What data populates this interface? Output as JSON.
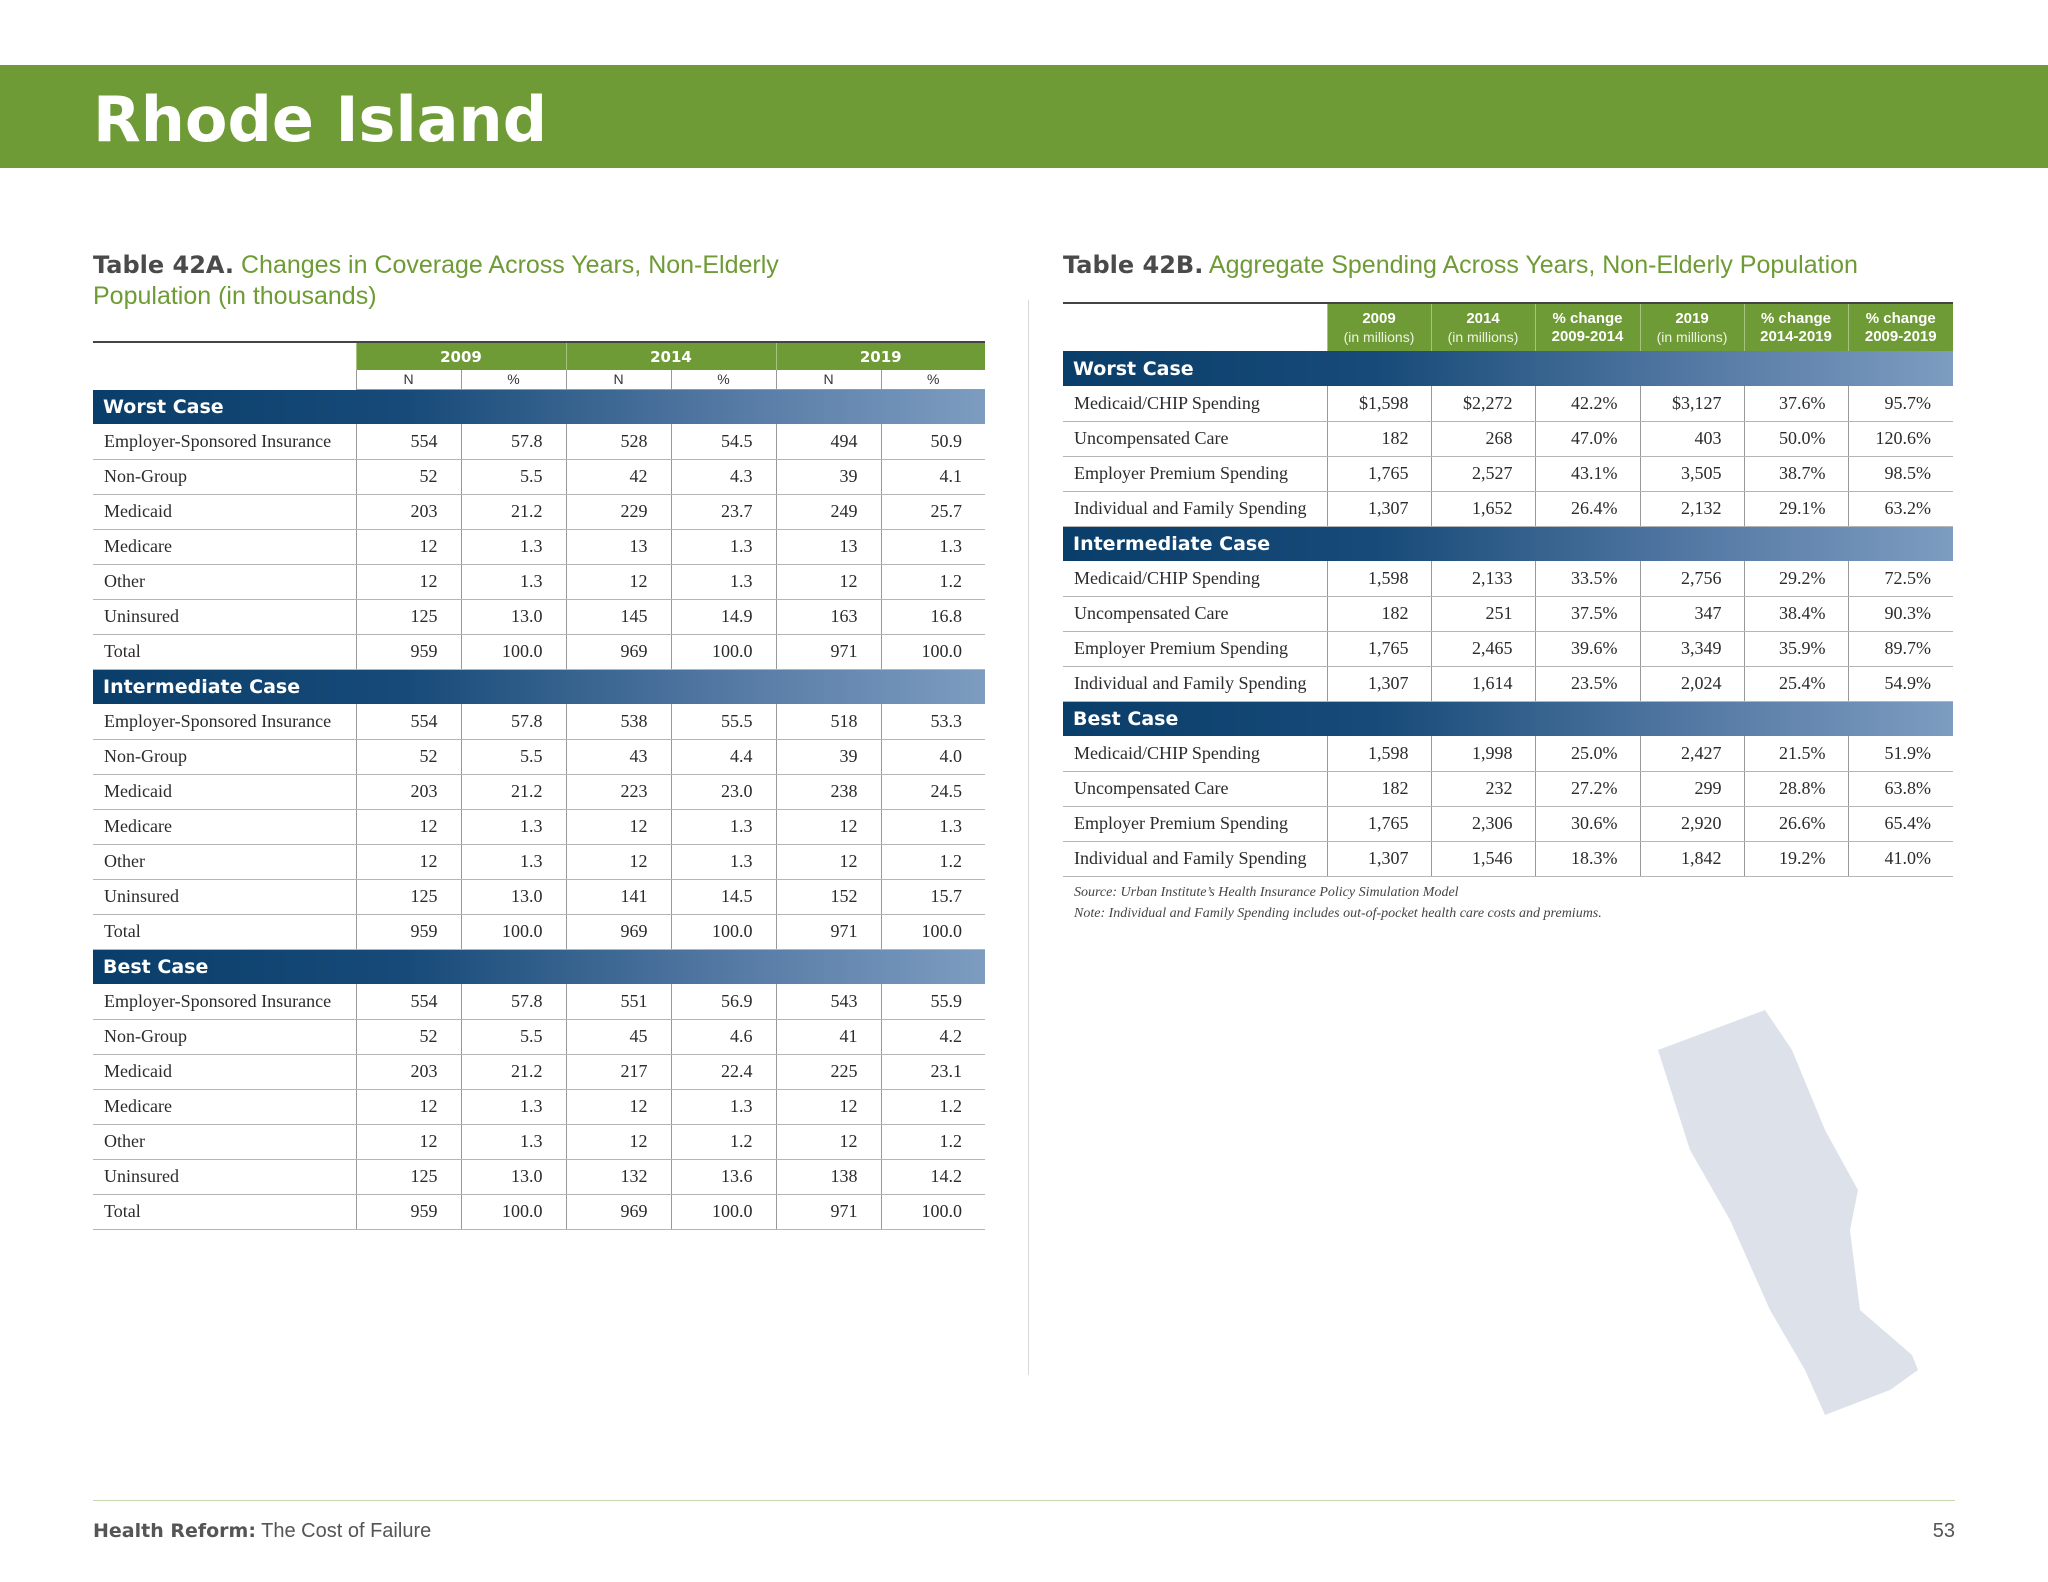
{
  "page": {
    "title": "Rhode Island",
    "number": "53"
  },
  "footer": {
    "publication_bold": "Health Reform:",
    "publication_rest": "The Cost of Failure"
  },
  "table_a": {
    "label": "Table 42A.",
    "title_line1": "Changes in Coverage Across Years, Non-Elderly",
    "title_line2": "Population (in thousands)",
    "years": [
      "2009",
      "2014",
      "2019"
    ],
    "subheaders": [
      "N",
      "%",
      "N",
      "%",
      "N",
      "%"
    ],
    "sections": [
      {
        "name": "Worst Case",
        "rows": [
          {
            "label": "Employer-Sponsored Insurance",
            "values": [
              "554",
              "57.8",
              "528",
              "54.5",
              "494",
              "50.9"
            ]
          },
          {
            "label": "Non-Group",
            "values": [
              "52",
              "5.5",
              "42",
              "4.3",
              "39",
              "4.1"
            ]
          },
          {
            "label": "Medicaid",
            "values": [
              "203",
              "21.2",
              "229",
              "23.7",
              "249",
              "25.7"
            ]
          },
          {
            "label": "Medicare",
            "values": [
              "12",
              "1.3",
              "13",
              "1.3",
              "13",
              "1.3"
            ]
          },
          {
            "label": "Other",
            "values": [
              "12",
              "1.3",
              "12",
              "1.3",
              "12",
              "1.2"
            ]
          },
          {
            "label": "Uninsured",
            "values": [
              "125",
              "13.0",
              "145",
              "14.9",
              "163",
              "16.8"
            ]
          },
          {
            "label": "Total",
            "values": [
              "959",
              "100.0",
              "969",
              "100.0",
              "971",
              "100.0"
            ]
          }
        ]
      },
      {
        "name": "Intermediate Case",
        "rows": [
          {
            "label": "Employer-Sponsored Insurance",
            "values": [
              "554",
              "57.8",
              "538",
              "55.5",
              "518",
              "53.3"
            ]
          },
          {
            "label": "Non-Group",
            "values": [
              "52",
              "5.5",
              "43",
              "4.4",
              "39",
              "4.0"
            ]
          },
          {
            "label": "Medicaid",
            "values": [
              "203",
              "21.2",
              "223",
              "23.0",
              "238",
              "24.5"
            ]
          },
          {
            "label": "Medicare",
            "values": [
              "12",
              "1.3",
              "12",
              "1.3",
              "12",
              "1.3"
            ]
          },
          {
            "label": "Other",
            "values": [
              "12",
              "1.3",
              "12",
              "1.3",
              "12",
              "1.2"
            ]
          },
          {
            "label": "Uninsured",
            "values": [
              "125",
              "13.0",
              "141",
              "14.5",
              "152",
              "15.7"
            ]
          },
          {
            "label": "Total",
            "values": [
              "959",
              "100.0",
              "969",
              "100.0",
              "971",
              "100.0"
            ]
          }
        ]
      },
      {
        "name": "Best Case",
        "rows": [
          {
            "label": "Employer-Sponsored Insurance",
            "values": [
              "554",
              "57.8",
              "551",
              "56.9",
              "543",
              "55.9"
            ]
          },
          {
            "label": "Non-Group",
            "values": [
              "52",
              "5.5",
              "45",
              "4.6",
              "41",
              "4.2"
            ]
          },
          {
            "label": "Medicaid",
            "values": [
              "203",
              "21.2",
              "217",
              "22.4",
              "225",
              "23.1"
            ]
          },
          {
            "label": "Medicare",
            "values": [
              "12",
              "1.3",
              "12",
              "1.3",
              "12",
              "1.2"
            ]
          },
          {
            "label": "Other",
            "values": [
              "12",
              "1.3",
              "12",
              "1.2",
              "12",
              "1.2"
            ]
          },
          {
            "label": "Uninsured",
            "values": [
              "125",
              "13.0",
              "132",
              "13.6",
              "138",
              "14.2"
            ]
          },
          {
            "label": "Total",
            "values": [
              "959",
              "100.0",
              "969",
              "100.0",
              "971",
              "100.0"
            ]
          }
        ]
      }
    ]
  },
  "table_b": {
    "label": "Table 42B.",
    "title": "Aggregate Spending Across Years, Non-Elderly Population",
    "columns": [
      {
        "top": "2009",
        "bottom": "(in millions)"
      },
      {
        "top": "2014",
        "bottom": "(in millions)"
      },
      {
        "top": "% change",
        "bottom": "2009-2014"
      },
      {
        "top": "2019",
        "bottom": "(in millions)"
      },
      {
        "top": "% change",
        "bottom": "2014-2019"
      },
      {
        "top": "% change",
        "bottom": "2009-2019"
      }
    ],
    "sections": [
      {
        "name": "Worst Case",
        "rows": [
          {
            "label": "Medicaid/CHIP Spending",
            "values": [
              "$1,598",
              "$2,272",
              "42.2%",
              "$3,127",
              "37.6%",
              "95.7%"
            ]
          },
          {
            "label": "Uncompensated Care",
            "values": [
              "182",
              "268",
              "47.0%",
              "403",
              "50.0%",
              "120.6%"
            ]
          },
          {
            "label": "Employer Premium Spending",
            "values": [
              "1,765",
              "2,527",
              "43.1%",
              "3,505",
              "38.7%",
              "98.5%"
            ]
          },
          {
            "label": "Individual and Family Spending",
            "values": [
              "1,307",
              "1,652",
              "26.4%",
              "2,132",
              "29.1%",
              "63.2%"
            ]
          }
        ]
      },
      {
        "name": "Intermediate Case",
        "rows": [
          {
            "label": "Medicaid/CHIP Spending",
            "values": [
              "1,598",
              "2,133",
              "33.5%",
              "2,756",
              "29.2%",
              "72.5%"
            ]
          },
          {
            "label": "Uncompensated Care",
            "values": [
              "182",
              "251",
              "37.5%",
              "347",
              "38.4%",
              "90.3%"
            ]
          },
          {
            "label": "Employer Premium Spending",
            "values": [
              "1,765",
              "2,465",
              "39.6%",
              "3,349",
              "35.9%",
              "89.7%"
            ]
          },
          {
            "label": "Individual and Family Spending",
            "values": [
              "1,307",
              "1,614",
              "23.5%",
              "2,024",
              "25.4%",
              "54.9%"
            ]
          }
        ]
      },
      {
        "name": "Best Case",
        "rows": [
          {
            "label": "Medicaid/CHIP Spending",
            "values": [
              "1,598",
              "1,998",
              "25.0%",
              "2,427",
              "21.5%",
              "51.9%"
            ]
          },
          {
            "label": "Uncompensated Care",
            "values": [
              "182",
              "232",
              "27.2%",
              "299",
              "28.8%",
              "63.8%"
            ]
          },
          {
            "label": "Employer Premium Spending",
            "values": [
              "1,765",
              "2,306",
              "30.6%",
              "2,920",
              "26.6%",
              "65.4%"
            ]
          },
          {
            "label": "Individual and Family Spending",
            "values": [
              "1,307",
              "1,546",
              "18.3%",
              "1,842",
              "19.2%",
              "41.0%"
            ]
          }
        ]
      }
    ],
    "source": "Source: Urban Institute’s Health Insurance Policy Simulation Model",
    "note": "Note: Individual and Family Spending includes out-of-pocket health care costs and premiums."
  },
  "colors": {
    "banner_green": "#6e9b35",
    "section_blue": "#0a3e6a",
    "state_silhouette": "#dde2ea"
  }
}
